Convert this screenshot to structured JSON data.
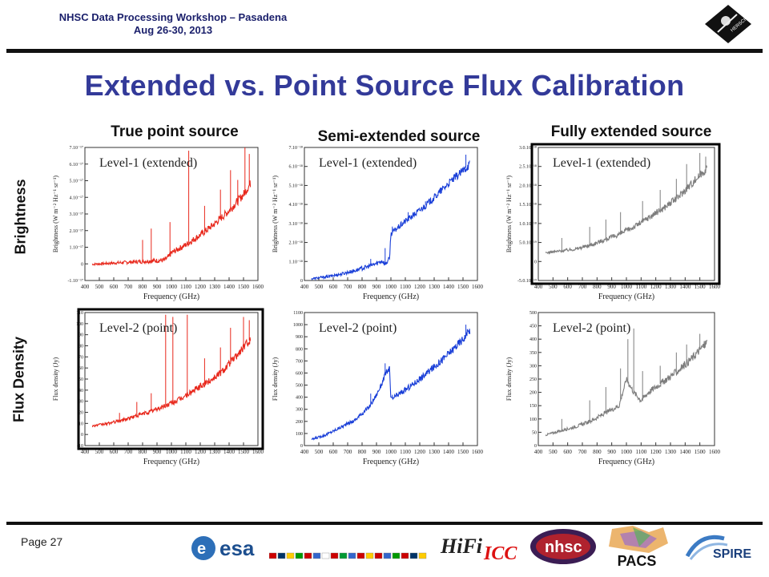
{
  "header": {
    "line1": "NHSC Data Processing Workshop – Pasadena",
    "line2": "Aug 26-30, 2013"
  },
  "title": "Extended vs. Point Source Flux Calibration",
  "columns": [
    "True point source",
    "Semi-extended source",
    "Fully extended source"
  ],
  "rows": [
    "Brightness",
    "Flux Density"
  ],
  "footer": {
    "page": "Page 27",
    "pacs": "PACS",
    "logos": [
      "esa",
      "HiFi ICC",
      "nhsc",
      "PACS",
      "SPIRE"
    ]
  },
  "colors": {
    "title": "#333a99",
    "point": "#e8281c",
    "semi": "#1a3fd8",
    "extended": "#7d7d7d"
  },
  "chart_data": [
    {
      "type": "line",
      "label": "Level-1 (extended)",
      "xlabel": "Frequency (GHz)",
      "ylabel": "Brightness (W m⁻² Hz⁻¹ sr⁻¹)",
      "xticks": [
        "400",
        "500",
        "600",
        "700",
        "800",
        "900",
        "1000",
        "1100",
        "1200",
        "1300",
        "1400",
        "1500",
        "1600"
      ],
      "yticks": [
        "-1.10⁻¹⁷",
        "0",
        "1.10⁻¹⁷",
        "2.10⁻¹⁷",
        "3.10⁻¹⁷",
        "4.10⁻¹⁷",
        "5.10⁻¹⁷",
        "6.10⁻¹⁷",
        "7.10⁻¹⁷"
      ],
      "xlim": [
        400,
        1600
      ],
      "ylim": [
        -1,
        7.2
      ],
      "color": "#e8281c",
      "highlight": false,
      "x": [
        450,
        550,
        650,
        750,
        850,
        950,
        980,
        1000,
        1100,
        1200,
        1300,
        1400,
        1500,
        1550
      ],
      "y": [
        0,
        0.05,
        0.1,
        0.15,
        0.2,
        0.25,
        0.45,
        0.7,
        1.2,
        1.8,
        2.5,
        3.3,
        4.3,
        5.0
      ],
      "spikes": [
        [
          800,
          1.5
        ],
        [
          860,
          2.2
        ],
        [
          990,
          2.6
        ],
        [
          1120,
          7.0
        ],
        [
          1230,
          3.6
        ],
        [
          1340,
          4.6
        ],
        [
          1410,
          5.8
        ],
        [
          1460,
          5.2
        ],
        [
          1510,
          7.2
        ],
        [
          1540,
          6.8
        ]
      ]
    },
    {
      "type": "line",
      "label": "Level-1 (extended)",
      "xlabel": "Frequency (GHz)",
      "ylabel": "Brightness (W m⁻² Hz⁻¹ sr⁻¹)",
      "xticks": [
        "400",
        "500",
        "600",
        "700",
        "800",
        "900",
        "1000",
        "1100",
        "1200",
        "1300",
        "1400",
        "1500",
        "1600"
      ],
      "yticks": [
        "0",
        "1.10⁻¹⁸",
        "2.10⁻¹⁸",
        "3.10⁻¹⁸",
        "4.10⁻¹⁸",
        "5.10⁻¹⁸",
        "6.10⁻¹⁸",
        "7.10⁻¹⁸"
      ],
      "xlim": [
        400,
        1600
      ],
      "ylim": [
        0,
        7.4
      ],
      "color": "#1a3fd8",
      "highlight": false,
      "x": [
        450,
        550,
        650,
        750,
        850,
        900,
        940,
        960,
        990,
        1000,
        1100,
        1200,
        1300,
        1400,
        1500,
        1550
      ],
      "y": [
        0.1,
        0.2,
        0.35,
        0.55,
        0.8,
        0.95,
        1.1,
        0.9,
        1.2,
        2.6,
        3.3,
        3.9,
        4.6,
        5.4,
        6.1,
        6.5
      ],
      "spikes": [
        [
          860,
          1.2
        ],
        [
          960,
          1.8
        ],
        [
          1010,
          3.0
        ],
        [
          1120,
          3.8
        ],
        [
          1240,
          4.4
        ],
        [
          1340,
          5.0
        ],
        [
          1450,
          6.0
        ],
        [
          1520,
          7.0
        ]
      ]
    },
    {
      "type": "line",
      "label": "Level-1 (extended)",
      "xlabel": "Frequency (GHz)",
      "ylabel": "Brightness (W m⁻² Hz⁻¹ sr⁻¹)",
      "xticks": [
        "400",
        "500",
        "600",
        "700",
        "800",
        "900",
        "1000",
        "1100",
        "1200",
        "1300",
        "1400",
        "1500",
        "1600"
      ],
      "yticks": [
        "-5.0.10⁻¹⁹",
        "0",
        "5.0.10⁻¹⁹",
        "1.0.10⁻¹⁸",
        "1.5.10⁻¹⁸",
        "2.0.10⁻¹⁸",
        "2.5.10⁻¹⁸",
        "3.0.10⁻¹⁸"
      ],
      "xlim": [
        400,
        1600
      ],
      "ylim": [
        -0.55,
        3.05
      ],
      "color": "#7d7d7d",
      "highlight": true,
      "x": [
        450,
        550,
        650,
        750,
        850,
        950,
        1050,
        1150,
        1250,
        1350,
        1450,
        1550
      ],
      "y": [
        0.2,
        0.25,
        0.3,
        0.4,
        0.55,
        0.7,
        0.9,
        1.15,
        1.4,
        1.7,
        2.1,
        2.5
      ],
      "spikes": [
        [
          560,
          0.6
        ],
        [
          750,
          0.9
        ],
        [
          860,
          1.1
        ],
        [
          960,
          1.3
        ],
        [
          1110,
          1.6
        ],
        [
          1230,
          1.9
        ],
        [
          1340,
          2.2
        ],
        [
          1410,
          2.6
        ],
        [
          1500,
          2.9
        ],
        [
          1540,
          2.8
        ]
      ]
    },
    {
      "type": "line",
      "label": "Level-2 (point)",
      "xlabel": "Frequency (GHz)",
      "ylabel": "Flux density (Jy)",
      "xticks": [
        "400",
        "500",
        "600",
        "700",
        "800",
        "900",
        "1000",
        "1100",
        "1200",
        "1300",
        "1400",
        "1500",
        "1600"
      ],
      "yticks": [
        "-10",
        "0",
        "10",
        "20",
        "30",
        "40",
        "50",
        "60",
        "70",
        "80",
        "90",
        "100",
        "110"
      ],
      "xlim": [
        400,
        1600
      ],
      "ylim": [
        -10,
        112
      ],
      "color": "#e8281c",
      "highlight": true,
      "x": [
        450,
        550,
        650,
        750,
        850,
        950,
        1050,
        1150,
        1250,
        1350,
        1450,
        1550
      ],
      "y": [
        8,
        10,
        13,
        17,
        21,
        26,
        32,
        40,
        48,
        58,
        72,
        88
      ],
      "spikes": [
        [
          640,
          20
        ],
        [
          760,
          30
        ],
        [
          860,
          38
        ],
        [
          960,
          110
        ],
        [
          1010,
          108
        ],
        [
          1110,
          110
        ],
        [
          1230,
          70
        ],
        [
          1340,
          80
        ],
        [
          1410,
          98
        ],
        [
          1500,
          108
        ],
        [
          1540,
          105
        ]
      ]
    },
    {
      "type": "line",
      "label": "Level-2 (point)",
      "xlabel": "Frequency (GHz)",
      "ylabel": "Flux density (Jy)",
      "xticks": [
        "400",
        "500",
        "600",
        "700",
        "800",
        "900",
        "1000",
        "1100",
        "1200",
        "1300",
        "1400",
        "1500",
        "1600"
      ],
      "yticks": [
        "0",
        "100",
        "200",
        "300",
        "400",
        "500",
        "600",
        "700",
        "800",
        "900",
        "1000",
        "1100"
      ],
      "xlim": [
        400,
        1600
      ],
      "ylim": [
        0,
        1100
      ],
      "color": "#1a3fd8",
      "highlight": false,
      "x": [
        450,
        550,
        650,
        750,
        850,
        900,
        940,
        960,
        990,
        1000,
        1100,
        1200,
        1300,
        1400,
        1500,
        1550
      ],
      "y": [
        50,
        90,
        150,
        210,
        320,
        420,
        520,
        590,
        640,
        380,
        460,
        550,
        650,
        760,
        880,
        960
      ],
      "spikes": [
        [
          860,
          430
        ],
        [
          960,
          680
        ],
        [
          1010,
          420
        ],
        [
          1120,
          500
        ],
        [
          1240,
          600
        ],
        [
          1340,
          700
        ],
        [
          1450,
          840
        ],
        [
          1520,
          1000
        ]
      ]
    },
    {
      "type": "line",
      "label": "Level-2 (point)",
      "xlabel": "Frequency (GHz)",
      "ylabel": "Flux density (Jy)",
      "xticks": [
        "400",
        "500",
        "600",
        "700",
        "800",
        "900",
        "1000",
        "1100",
        "1200",
        "1300",
        "1400",
        "1500",
        "1600"
      ],
      "yticks": [
        "0",
        "50",
        "100",
        "150",
        "200",
        "250",
        "300",
        "350",
        "400",
        "450",
        "500"
      ],
      "xlim": [
        400,
        1600
      ],
      "ylim": [
        0,
        500
      ],
      "color": "#7d7d7d",
      "highlight": false,
      "x": [
        450,
        550,
        650,
        750,
        850,
        950,
        1000,
        1050,
        1100,
        1150,
        1250,
        1350,
        1450,
        1550
      ],
      "y": [
        40,
        55,
        70,
        90,
        120,
        150,
        250,
        200,
        170,
        200,
        240,
        280,
        330,
        390
      ],
      "spikes": [
        [
          560,
          100
        ],
        [
          750,
          170
        ],
        [
          860,
          220
        ],
        [
          960,
          290
        ],
        [
          1010,
          400
        ],
        [
          1050,
          440
        ],
        [
          1110,
          280
        ],
        [
          1230,
          300
        ],
        [
          1340,
          350
        ],
        [
          1410,
          380
        ],
        [
          1500,
          420
        ]
      ]
    }
  ]
}
